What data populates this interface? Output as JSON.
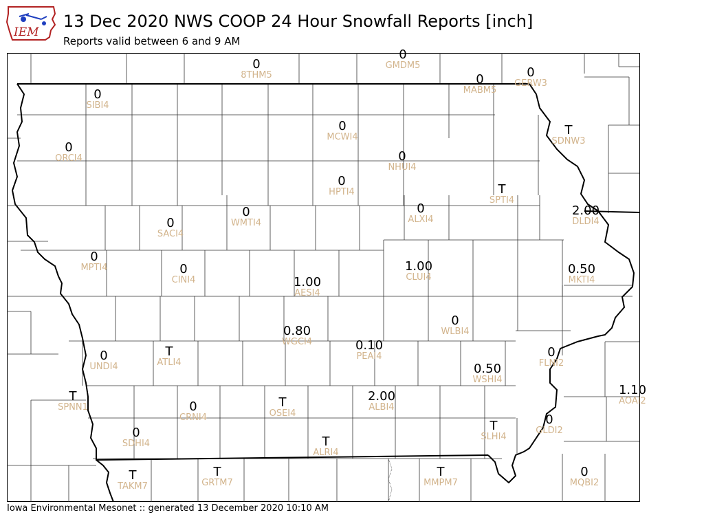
{
  "header": {
    "logo_text": "IEM",
    "title": "13 Dec 2020 NWS COOP 24 Hour Snowfall Reports [inch]",
    "subtitle": "Reports valid between 6 and 9 AM"
  },
  "footer": {
    "text": "Iowa Environmental Mesonet :: generated 13 December 2020 10:10 AM"
  },
  "colors": {
    "value_text": "#000000",
    "station_id_text": "#d2b48c",
    "county_lines": "#333333",
    "state_lines": "#000000"
  },
  "stations": [
    {
      "id": "8THM5",
      "value": "0"
    },
    {
      "id": "GMDM5",
      "value": "0"
    },
    {
      "id": "MABM5",
      "value": "0"
    },
    {
      "id": "GERW3",
      "value": "0"
    },
    {
      "id": "SIBI4",
      "value": "0"
    },
    {
      "id": "ORCI4",
      "value": "0"
    },
    {
      "id": "MCWI4",
      "value": "0"
    },
    {
      "id": "NHUI4",
      "value": "0"
    },
    {
      "id": "SDNW3",
      "value": "T"
    },
    {
      "id": "HPTI4",
      "value": "0"
    },
    {
      "id": "SPTI4",
      "value": "T"
    },
    {
      "id": "WMTI4",
      "value": "0"
    },
    {
      "id": "ALXI4",
      "value": "0"
    },
    {
      "id": "DLDI4",
      "value": "2.00"
    },
    {
      "id": "SACI4",
      "value": "0"
    },
    {
      "id": "MPTI4",
      "value": "0"
    },
    {
      "id": "CINI4",
      "value": "0"
    },
    {
      "id": "CLUI4",
      "value": "1.00"
    },
    {
      "id": "MKTI4",
      "value": "0.50"
    },
    {
      "id": "AESI4",
      "value": "1.00"
    },
    {
      "id": "WLBI4",
      "value": "0"
    },
    {
      "id": "WGCI4",
      "value": "0.80"
    },
    {
      "id": "PEAI4",
      "value": "0.10"
    },
    {
      "id": "UNDI4",
      "value": "0"
    },
    {
      "id": "ATLI4",
      "value": "T"
    },
    {
      "id": "FLNI2",
      "value": "0"
    },
    {
      "id": "WSHI4",
      "value": "0.50"
    },
    {
      "id": "AOAI2",
      "value": "1.10"
    },
    {
      "id": "SPNN1",
      "value": "T"
    },
    {
      "id": "CRNI4",
      "value": "0"
    },
    {
      "id": "OSEI4",
      "value": "T"
    },
    {
      "id": "ALBI4",
      "value": "2.00"
    },
    {
      "id": "SDHI4",
      "value": "0"
    },
    {
      "id": "SLHI4",
      "value": "T"
    },
    {
      "id": "GLDI2",
      "value": "0"
    },
    {
      "id": "ALRI4",
      "value": "T"
    },
    {
      "id": "TAKM7",
      "value": "T"
    },
    {
      "id": "GRTM7",
      "value": "T"
    },
    {
      "id": "MMPM7",
      "value": "T"
    },
    {
      "id": "MQBI2",
      "value": "0"
    }
  ]
}
